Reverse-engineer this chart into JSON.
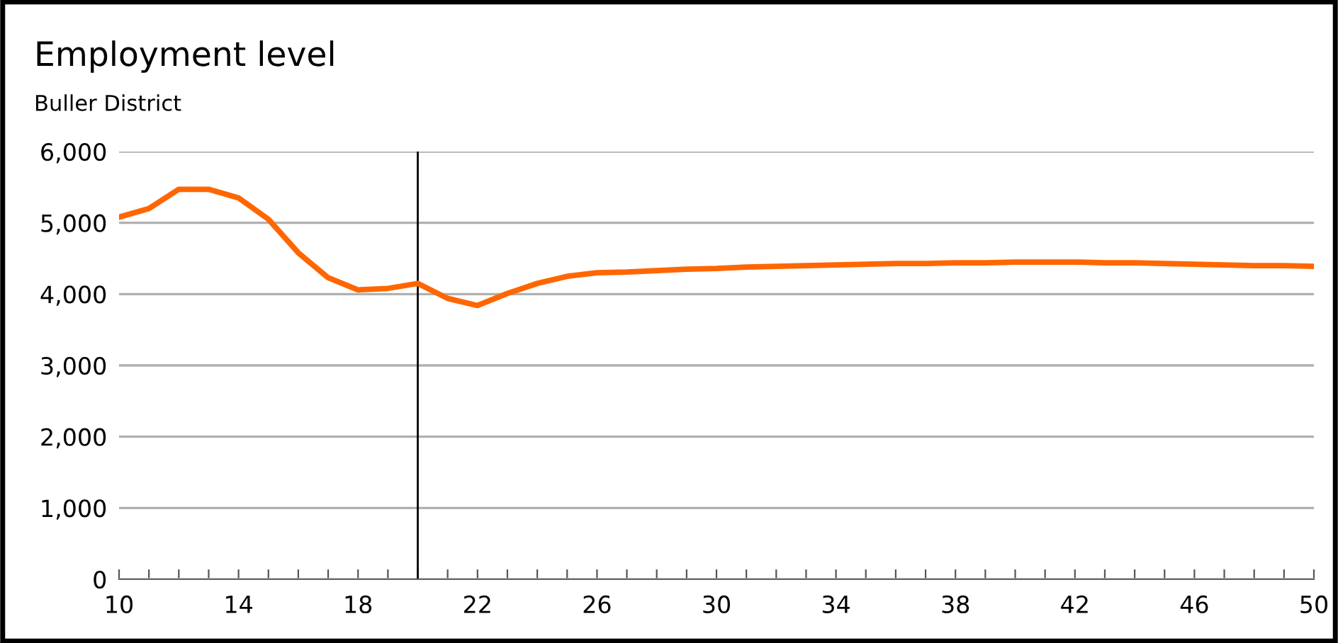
{
  "chart_data": {
    "type": "line",
    "title": "Employment level",
    "subtitle": "Buller District",
    "x": [
      10,
      11,
      12,
      13,
      14,
      15,
      16,
      17,
      18,
      19,
      20,
      21,
      22,
      23,
      24,
      25,
      26,
      27,
      28,
      29,
      30,
      31,
      32,
      33,
      34,
      35,
      36,
      37,
      38,
      39,
      40,
      41,
      42,
      43,
      44,
      45,
      46,
      47,
      48,
      49,
      50
    ],
    "series": [
      {
        "color": "#ff6600",
        "values": [
          5080,
          5200,
          5470,
          5470,
          5350,
          5050,
          4580,
          4230,
          4060,
          4080,
          4150,
          3940,
          3840,
          4010,
          4150,
          4250,
          4300,
          4310,
          4330,
          4350,
          4360,
          4380,
          4390,
          4400,
          4410,
          4420,
          4430,
          4430,
          4440,
          4440,
          4450,
          4450,
          4450,
          4440,
          4440,
          4430,
          4420,
          4410,
          4400,
          4400,
          4390
        ]
      }
    ],
    "xlim": [
      10,
      50
    ],
    "xticks": [
      10,
      {
        "value": 11,
        "label": null
      },
      {
        "value": 12,
        "label": null
      },
      {
        "value": 13,
        "label": null
      },
      14,
      {
        "value": 15,
        "label": null
      },
      {
        "value": 16,
        "label": null
      },
      {
        "value": 17,
        "label": null
      },
      18,
      {
        "value": 19,
        "label": null
      },
      {
        "value": 20,
        "label": null
      },
      {
        "value": 21,
        "label": null
      },
      22,
      {
        "value": 23,
        "label": null
      },
      {
        "value": 24,
        "label": null
      },
      {
        "value": 25,
        "label": null
      },
      26,
      {
        "value": 27,
        "label": null
      },
      {
        "value": 28,
        "label": null
      },
      {
        "value": 29,
        "label": null
      },
      30,
      {
        "value": 31,
        "label": null
      },
      {
        "value": 32,
        "label": null
      },
      {
        "value": 33,
        "label": null
      },
      34,
      {
        "value": 35,
        "label": null
      },
      {
        "value": 36,
        "label": null
      },
      {
        "value": 37,
        "label": null
      },
      38,
      {
        "value": 39,
        "label": null
      },
      {
        "value": 40,
        "label": null
      },
      {
        "value": 41,
        "label": null
      },
      42,
      {
        "value": 43,
        "label": null
      },
      {
        "value": 44,
        "label": null
      },
      {
        "value": 45,
        "label": null
      },
      46,
      {
        "value": 47,
        "label": null
      },
      {
        "value": 48,
        "label": null
      },
      {
        "value": 49,
        "label": null
      },
      50
    ],
    "ylim": [
      0,
      6000
    ],
    "yticks": [
      0,
      {
        "value": 1000,
        "label": "1,000"
      },
      {
        "value": 2000,
        "label": "2,000"
      },
      {
        "value": 3000,
        "label": "3,000"
      },
      {
        "value": 4000,
        "label": "4,000"
      },
      {
        "value": 5000,
        "label": "5,000"
      },
      {
        "value": 6000,
        "label": "6,000"
      }
    ],
    "ref_lines": [
      {
        "axis": "x",
        "value": 20,
        "color": "#000000"
      }
    ],
    "grid": "y",
    "marker": "none",
    "line_style": "solid"
  }
}
